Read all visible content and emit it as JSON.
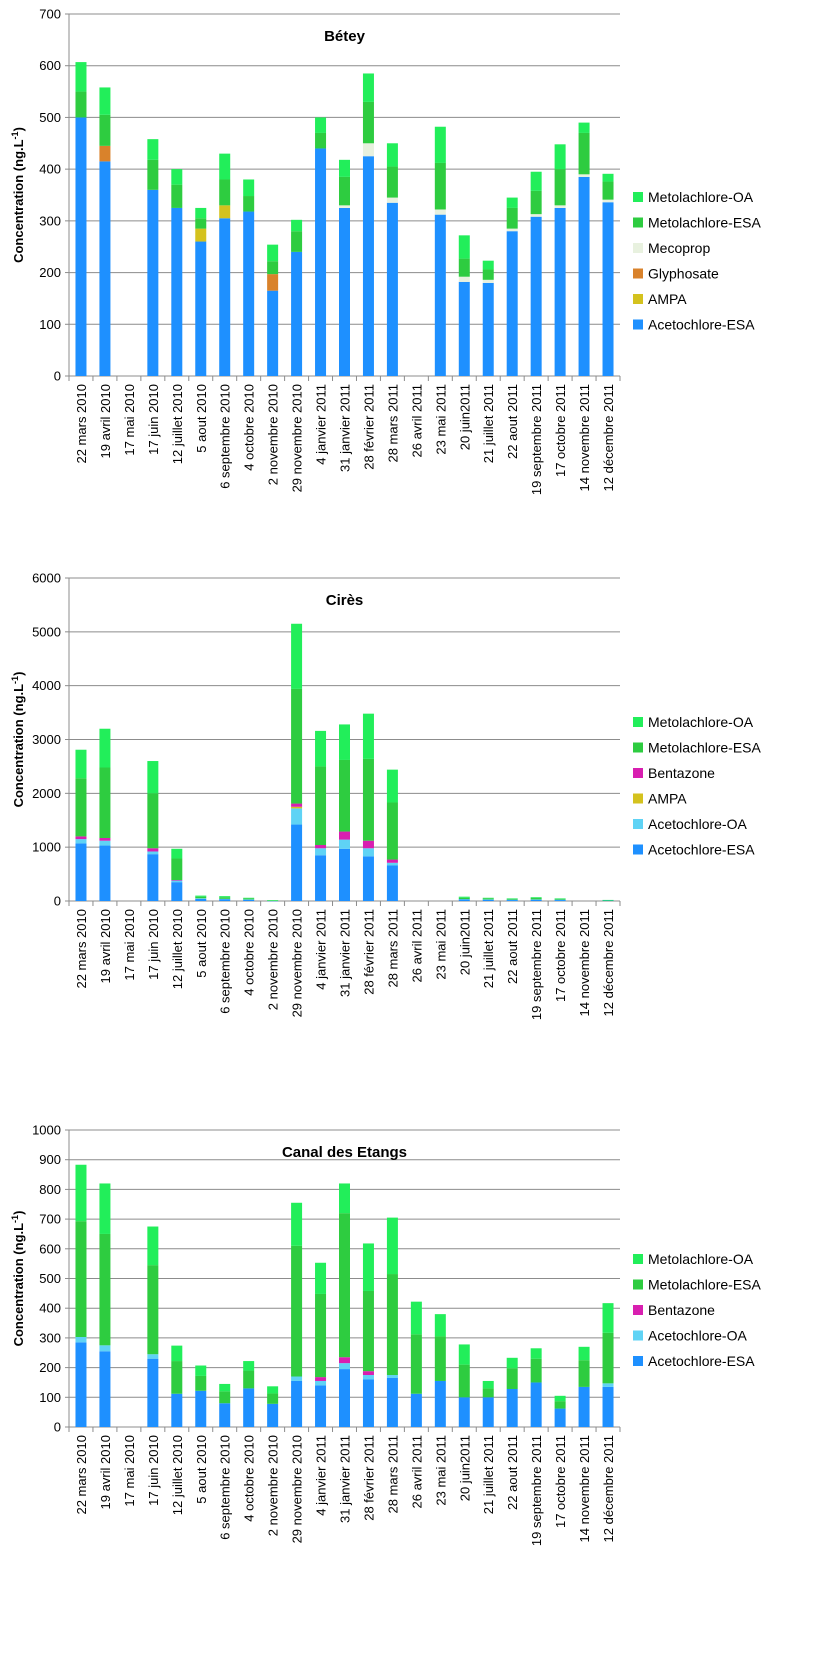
{
  "colors": {
    "Acetochlore-ESA": "#1e90ff",
    "Acetochlore-OA": "#5fd3f5",
    "AMPA": "#d4c21e",
    "Glyphosate": "#d9822b",
    "Mecoprop": "#e8f1df",
    "Bentazone": "#d81fb0",
    "Metolachlore-ESA": "#2ecc40",
    "Metolachlore-OA": "#22ee5a"
  },
  "chart_data": [
    {
      "type": "bar",
      "stacked": true,
      "title": "Bétey",
      "ylabel_main": "Concentration (ng.L",
      "ylabel_sup": "-1",
      "ylabel_end": ")",
      "ylim": [
        0,
        700
      ],
      "yticks": [
        "0",
        "100",
        "200",
        "300",
        "400",
        "500",
        "600",
        "700"
      ],
      "grid": true,
      "legend_position": "right",
      "categories": [
        "22 mars 2010",
        "19 avril 2010",
        "17 mai 2010",
        "17 juin 2010",
        "12 juillet 2010",
        "5 aout 2010",
        "6 septembre 2010",
        "4 octobre 2010",
        "2 novembre 2010",
        "29 novembre 2010",
        "4 janvier 2011",
        "31 janvier 2011",
        "28 février 2011",
        "28 mars 2011",
        "26 avril 2011",
        "23 mai 2011",
        "20 juin2011",
        "21 juillet 2011",
        "22 aout 2011",
        "19 septembre 2011",
        "17 octobre 2011",
        "14 novembre 2011",
        "12 décembre 2011"
      ],
      "series": [
        {
          "name": "Acetochlore-ESA",
          "values": [
            500,
            415,
            0,
            360,
            325,
            260,
            305,
            318,
            165,
            240,
            440,
            325,
            425,
            335,
            0,
            312,
            182,
            180,
            280,
            308,
            325,
            385,
            336
          ]
        },
        {
          "name": "AMPA",
          "values": [
            0,
            0,
            0,
            0,
            0,
            25,
            25,
            0,
            0,
            0,
            0,
            0,
            0,
            0,
            0,
            0,
            0,
            0,
            0,
            0,
            0,
            0,
            0
          ]
        },
        {
          "name": "Glyphosate",
          "values": [
            0,
            30,
            0,
            0,
            0,
            0,
            0,
            0,
            32,
            0,
            0,
            0,
            0,
            0,
            0,
            0,
            0,
            0,
            0,
            0,
            0,
            0,
            0
          ]
        },
        {
          "name": "Mecoprop",
          "values": [
            0,
            0,
            0,
            0,
            0,
            0,
            0,
            0,
            0,
            0,
            0,
            5,
            25,
            10,
            0,
            10,
            10,
            6,
            5,
            5,
            5,
            5,
            5
          ]
        },
        {
          "name": "Metolachlore-ESA",
          "values": [
            50,
            60,
            0,
            58,
            45,
            20,
            50,
            30,
            25,
            40,
            30,
            55,
            80,
            60,
            0,
            90,
            35,
            20,
            40,
            45,
            70,
            80,
            35
          ]
        },
        {
          "name": "Metolachlore-OA",
          "values": [
            57,
            53,
            0,
            40,
            30,
            20,
            50,
            32,
            32,
            22,
            30,
            33,
            55,
            45,
            0,
            70,
            45,
            17,
            20,
            37,
            48,
            20,
            15
          ]
        }
      ]
    },
    {
      "type": "bar",
      "stacked": true,
      "title": "Cirès",
      "ylabel_main": "Concentration (ng.L",
      "ylabel_sup": "-1",
      "ylabel_end": ")",
      "ylim": [
        0,
        6000
      ],
      "yticks": [
        "0",
        "1000",
        "2000",
        "3000",
        "4000",
        "5000",
        "6000"
      ],
      "grid": true,
      "legend_position": "right",
      "categories": [
        "22 mars 2010",
        "19 avril 2010",
        "17 mai 2010",
        "17 juin 2010",
        "12 juillet 2010",
        "5 aout 2010",
        "6 septembre 2010",
        "4 octobre 2010",
        "2 novembre 2010",
        "29 novembre 2010",
        "4 janvier 2011",
        "31 janvier 2011",
        "28 février 2011",
        "28 mars 2011",
        "26 avril 2011",
        "23 mai 2011",
        "20 juin2011",
        "21 juillet 2011",
        "22 aout 2011",
        "19 septembre 2011",
        "17 octobre 2011",
        "14 novembre 2011",
        "12 décembre 2011"
      ],
      "series": [
        {
          "name": "Acetochlore-ESA",
          "values": [
            1070,
            1030,
            0,
            870,
            350,
            40,
            35,
            25,
            5,
            1420,
            850,
            970,
            830,
            660,
            0,
            0,
            30,
            25,
            20,
            25,
            20,
            0,
            10
          ]
        },
        {
          "name": "Acetochlore-OA",
          "values": [
            80,
            90,
            0,
            50,
            30,
            10,
            5,
            5,
            0,
            300,
            130,
            170,
            150,
            50,
            0,
            0,
            5,
            5,
            5,
            5,
            5,
            0,
            0
          ]
        },
        {
          "name": "AMPA",
          "values": [
            0,
            0,
            0,
            0,
            0,
            0,
            0,
            0,
            0,
            30,
            0,
            0,
            0,
            0,
            0,
            0,
            0,
            0,
            0,
            0,
            0,
            0,
            0
          ]
        },
        {
          "name": "Bentazone",
          "values": [
            50,
            50,
            0,
            60,
            10,
            0,
            0,
            0,
            0,
            60,
            60,
            150,
            140,
            60,
            0,
            0,
            0,
            0,
            0,
            0,
            0,
            0,
            0
          ]
        },
        {
          "name": "Metolachlore-ESA",
          "values": [
            1080,
            1310,
            0,
            1020,
            400,
            30,
            30,
            20,
            5,
            2130,
            1460,
            1330,
            1520,
            1060,
            0,
            0,
            25,
            20,
            15,
            25,
            15,
            0,
            5
          ]
        },
        {
          "name": "Metolachlore-OA",
          "values": [
            530,
            720,
            0,
            600,
            180,
            20,
            20,
            10,
            5,
            1210,
            660,
            660,
            840,
            610,
            0,
            0,
            20,
            10,
            10,
            15,
            10,
            0,
            5
          ]
        }
      ]
    },
    {
      "type": "bar",
      "stacked": true,
      "title": "Canal des Etangs",
      "ylabel_main": "Concentration (ng.L",
      "ylabel_sup": "-1",
      "ylabel_end": ")",
      "ylim": [
        0,
        1000
      ],
      "yticks": [
        "0",
        "100",
        "200",
        "300",
        "400",
        "500",
        "600",
        "700",
        "800",
        "900",
        "1000"
      ],
      "grid": true,
      "legend_position": "right",
      "categories": [
        "22 mars 2010",
        "19 avril 2010",
        "17 mai 2010",
        "17 juin 2010",
        "12 juillet 2010",
        "5 aout 2010",
        "6 septembre 2010",
        "4 octobre 2010",
        "2 novembre 2010",
        "29 novembre 2010",
        "4 janvier 2011",
        "31 janvier 2011",
        "28 février 2011",
        "28 mars 2011",
        "26 avril 2011",
        "23 mai 2011",
        "20 juin2011",
        "21 juillet 2011",
        "22 aout 2011",
        "19 septembre 2011",
        "17 octobre 2011",
        "14 novembre 2011",
        "12 décembre 2011"
      ],
      "series": [
        {
          "name": "Acetochlore-ESA",
          "values": [
            285,
            255,
            0,
            230,
            112,
            122,
            80,
            130,
            78,
            155,
            140,
            195,
            160,
            165,
            112,
            155,
            100,
            100,
            128,
            150,
            62,
            135,
            135
          ]
        },
        {
          "name": "Acetochlore-OA",
          "values": [
            18,
            20,
            0,
            15,
            0,
            0,
            0,
            0,
            0,
            15,
            15,
            20,
            15,
            10,
            0,
            0,
            0,
            0,
            0,
            0,
            0,
            0,
            12
          ]
        },
        {
          "name": "Bentazone",
          "values": [
            0,
            0,
            0,
            0,
            0,
            0,
            0,
            0,
            0,
            0,
            13,
            20,
            13,
            0,
            0,
            0,
            0,
            0,
            0,
            0,
            0,
            0,
            0
          ]
        },
        {
          "name": "Metolachlore-ESA",
          "values": [
            390,
            375,
            0,
            300,
            110,
            50,
            40,
            60,
            35,
            440,
            280,
            485,
            270,
            340,
            200,
            150,
            110,
            30,
            70,
            80,
            25,
            90,
            170
          ]
        },
        {
          "name": "Metolachlore-OA",
          "values": [
            190,
            170,
            0,
            130,
            52,
            35,
            25,
            32,
            24,
            145,
            105,
            100,
            160,
            190,
            110,
            75,
            68,
            25,
            35,
            35,
            18,
            45,
            100
          ]
        }
      ]
    }
  ]
}
